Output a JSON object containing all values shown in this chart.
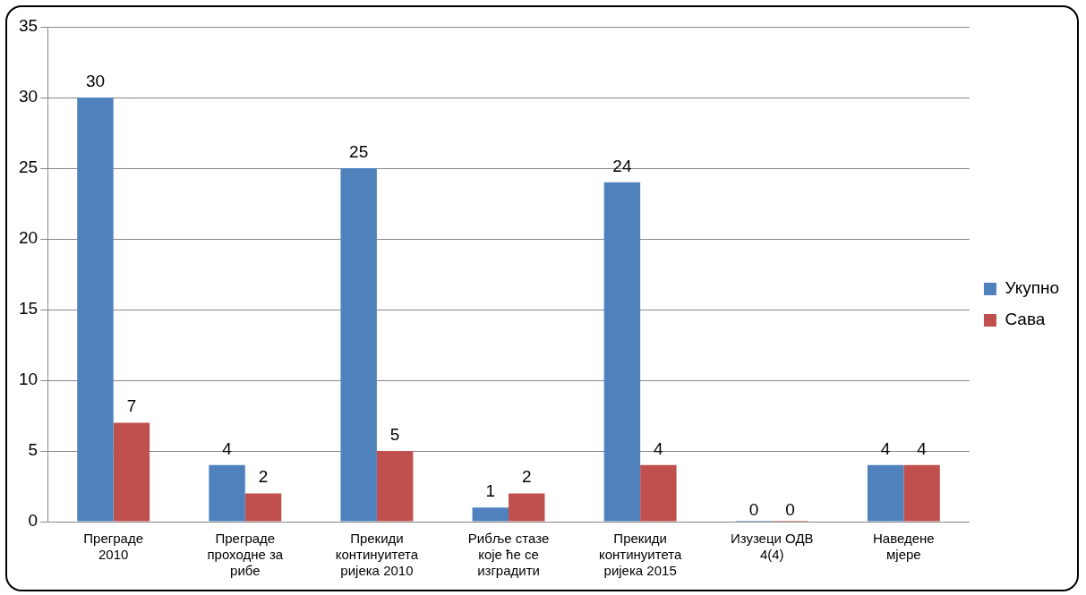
{
  "chart_data": {
    "type": "bar",
    "categories": [
      "Преграде 2010",
      "Преграде проходне за рибе",
      "Прекиди континуитета ријека 2010",
      "Рибље стазе које ће се изградити",
      "Прекиди континуитета ријека 2015",
      "Изузеци ОДВ 4(4)",
      "Наведене мјере"
    ],
    "series": [
      {
        "name": "Укупно",
        "color": "#4f81bd",
        "values": [
          30,
          4,
          25,
          1,
          24,
          0,
          4
        ]
      },
      {
        "name": "Сава",
        "color": "#c0504d",
        "values": [
          7,
          2,
          5,
          2,
          4,
          0,
          4
        ]
      }
    ],
    "ylim": [
      0,
      35
    ],
    "yticks": [
      0,
      5,
      10,
      15,
      20,
      25,
      30,
      35
    ],
    "grid": "y",
    "legend": "right",
    "data_labels": true
  }
}
